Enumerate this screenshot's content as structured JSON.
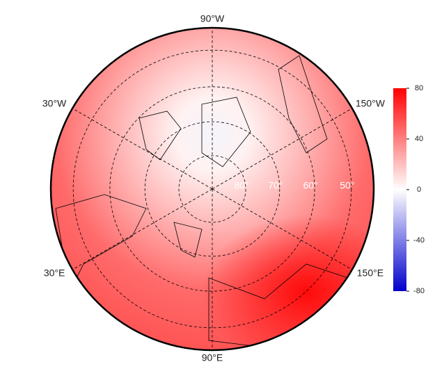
{
  "map": {
    "meridians": [
      {
        "value": -90,
        "label": "90°W"
      },
      {
        "value": -30,
        "label": "30°W"
      },
      {
        "value": -150,
        "label": "150°W"
      },
      {
        "value": 30,
        "label": "30°E"
      },
      {
        "value": 150,
        "label": "150°E"
      },
      {
        "value": 90,
        "label": "90°E"
      }
    ],
    "parallels": [
      {
        "value": 80,
        "label": "80°"
      },
      {
        "value": 70,
        "label": "70°"
      },
      {
        "value": 60,
        "label": "60°"
      },
      {
        "value": 50,
        "label": "50°"
      }
    ]
  },
  "colorbar": {
    "lim": [
      -80,
      80
    ],
    "ticks": [
      80,
      40,
      0,
      -40,
      -80
    ],
    "colors": [
      "#0000cc",
      "#ffffff",
      "#ff0000"
    ]
  }
}
